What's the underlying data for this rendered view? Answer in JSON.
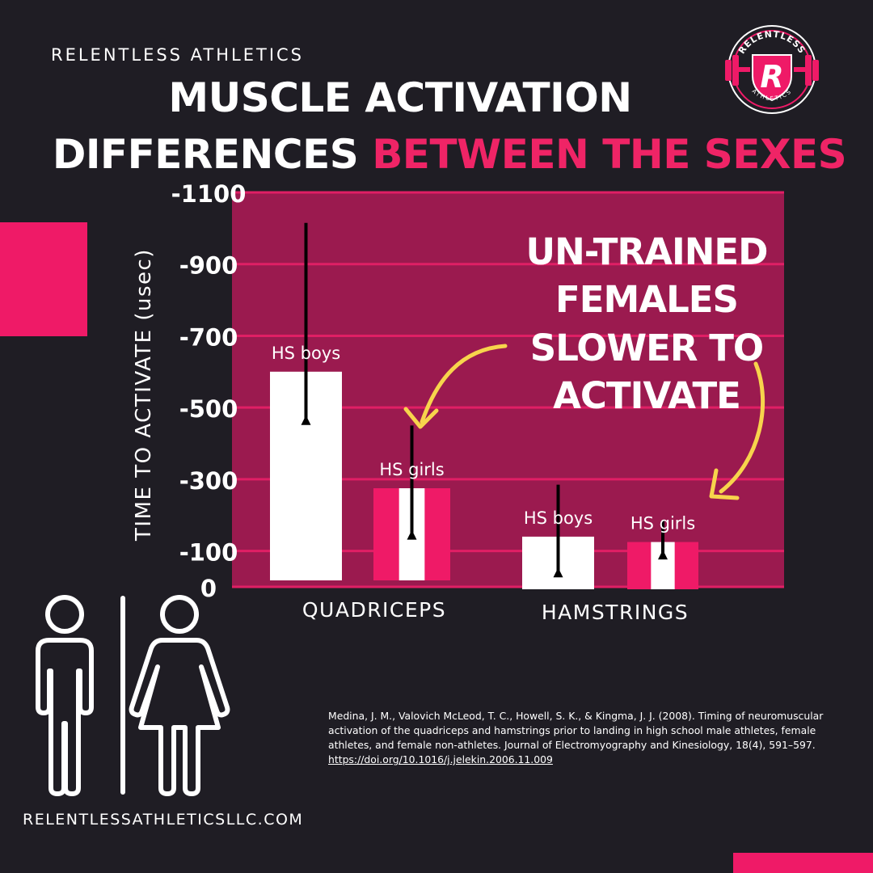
{
  "brand": "RELENTLESS ATHLETICS",
  "title_line1": "MUSCLE ACTIVATION",
  "title_line2_white": "DIFFERENCES",
  "title_line2_pink": "BETWEEN THE SEXES",
  "logo": {
    "top_text": "RELENTLESS",
    "bottom_text": "ATHLETICS",
    "letter": "R"
  },
  "callout": [
    "UN-TRAINED",
    "FEMALES",
    "SLOWER TO",
    "ACTIVATE"
  ],
  "colors": {
    "pink": "#ef1a67",
    "plot_bg": "#9b1a4f",
    "gridline": "#e01f65",
    "arrow": "#f7d44c",
    "background": "#1f1d24"
  },
  "chart_data": {
    "type": "bar",
    "title": "MUSCLE ACTIVATION DIFFERENCES BETWEEN THE SEXES",
    "ylabel": "TIME TO ACTIVATE (usec)",
    "xlabel": "",
    "ylim": [
      0,
      -1100
    ],
    "yticks": [
      0,
      -100,
      -300,
      -500,
      -700,
      -900,
      -1100
    ],
    "categories": [
      "QUADRICEPS",
      "HAMSTRINGS"
    ],
    "series": [
      {
        "name": "HS boys",
        "values": [
          -600,
          -140
        ],
        "error_low": [
          -465,
          -40
        ],
        "error_high": [
          -1015,
          -285
        ]
      },
      {
        "name": "HS girls",
        "values": [
          -275,
          -125
        ],
        "error_low": [
          -145,
          -90
        ],
        "error_high": [
          -450,
          -185
        ]
      }
    ],
    "grid": true
  },
  "citation": {
    "text": "Medina, J. M., Valovich McLeod, T. C., Howell, S. K., & Kingma, J. J. (2008). Timing of neuromuscular activation of the quadriceps and hamstrings prior to landing in high school male athletes, female athletes, and female non-athletes. Journal of Electromyography and Kinesiology, 18(4), 591–597.",
    "doi": "https://doi.org/10.1016/j.jelekin.2006.11.009"
  },
  "website": "RELENTLESSATHLETICSLLC.COM"
}
